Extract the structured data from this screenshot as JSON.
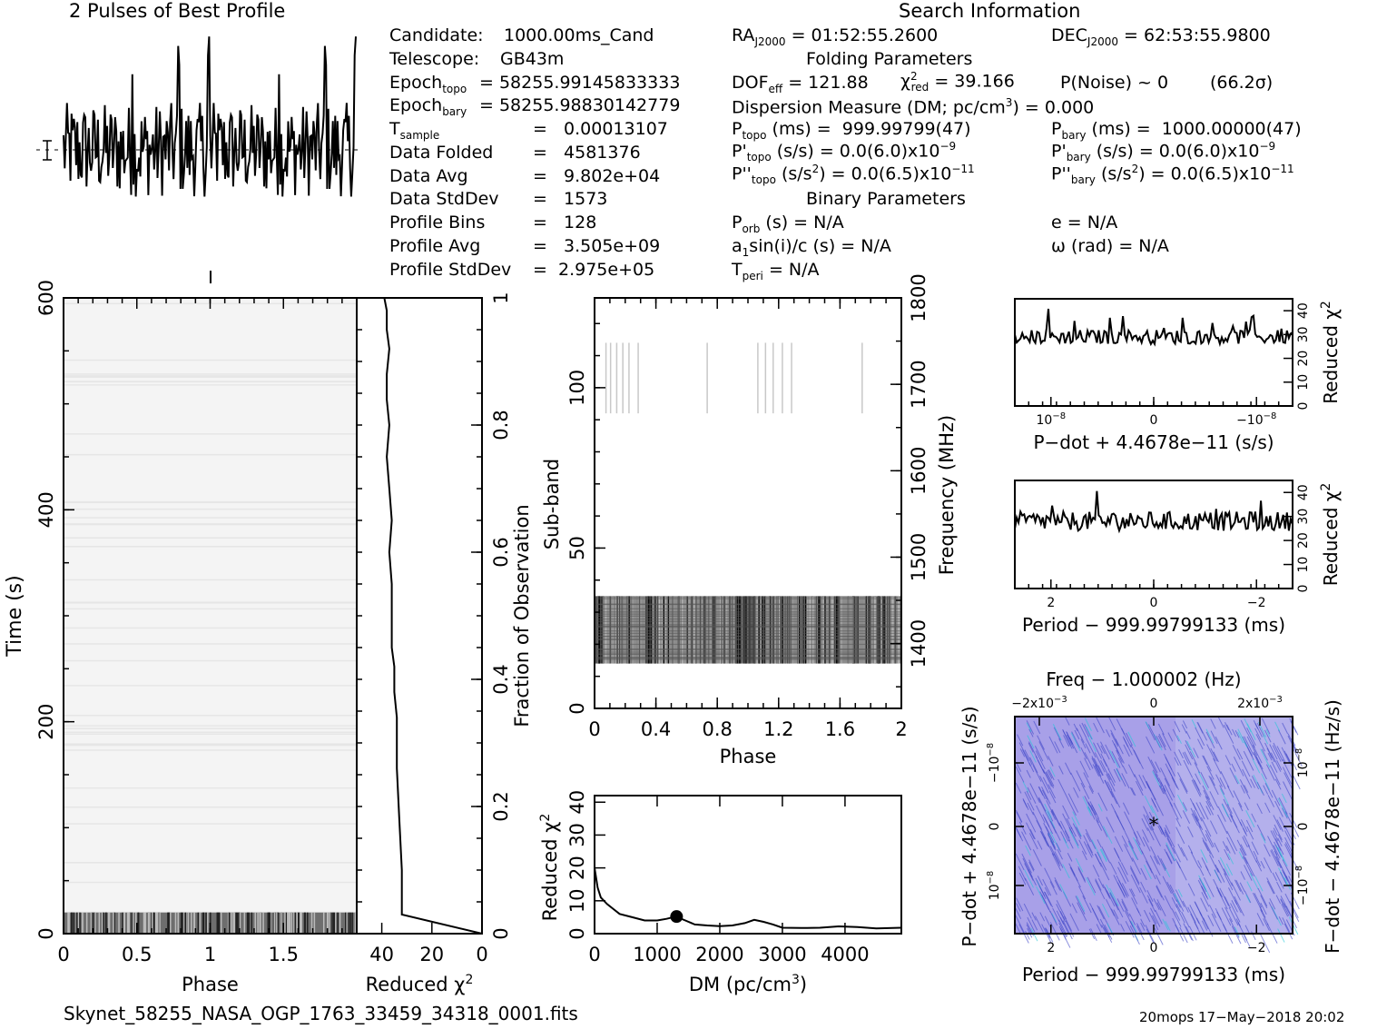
{
  "header": {
    "profile_title": "2 Pulses of Best Profile",
    "search_title": "Search Information",
    "folding_title": "Folding Parameters",
    "binary_title": "Binary Parameters"
  },
  "candidate_info": [
    {
      "label": "Candidate:",
      "value": "1000.00ms_Cand"
    },
    {
      "label": "Telescope:",
      "value": "GB43m"
    },
    {
      "label": "Epoch",
      "sub": "topo",
      "value": "= 58255.99145833333"
    },
    {
      "label": "Epoch",
      "sub": "bary",
      "value": "= 58255.98830142779"
    },
    {
      "label": "T",
      "sub": "sample",
      "value": "=   0.00013107"
    },
    {
      "label": "Data Folded",
      "value": "=   4581376"
    },
    {
      "label": "Data Avg",
      "value": "=   9.802e+04"
    },
    {
      "label": "Data StdDev",
      "value": "=   1573"
    },
    {
      "label": "Profile Bins",
      "value": "=   128"
    },
    {
      "label": "Profile Avg",
      "value": "=   3.505e+09"
    },
    {
      "label": "Profile StdDev",
      "value": "=  2.975e+05"
    }
  ],
  "search_info": {
    "ra_label": "RA",
    "ra_sub": "J2000",
    "ra_value": "= 01:52:55.2600",
    "dec_label": "DEC",
    "dec_sub": "J2000",
    "dec_value": "= 62:53:55.9800"
  },
  "folding": {
    "dof_label": "DOF",
    "dof_sub": "eff",
    "dof_value": "= 121.88",
    "chi_label": "χ",
    "chi_sup": "2",
    "chi_sub": "red",
    "chi_value": "= 39.166",
    "pnoise": "P(Noise) ~ 0",
    "sigma": "(66.2σ)",
    "dm_text": "Dispersion Measure (DM; pc/cm",
    "dm_sup": "3",
    "dm_value": ") = 0.000",
    "ptopo_label": "P",
    "ptopo_sub": "topo",
    "ptopo_value": "(ms) =  999.99799(47)",
    "pbary_label": "P",
    "pbary_sub": "bary",
    "pbary_value": "(ms) =  1000.00000(47)",
    "pdtopo_label": "P'",
    "pdtopo_sub": "topo",
    "pdtopo_value": "(s/s) = 0.0(6.0)x10",
    "pdtopo_exp": "−9",
    "pdbary_label": "P'",
    "pdbary_sub": "bary",
    "pdbary_value": "(s/s) = 0.0(6.0)x10",
    "pdbary_exp": "−9",
    "pddtopo_label": "P''",
    "pddtopo_sub": "topo",
    "pddtopo_value": "(s/s",
    "pddtopo_unit_sup": "2",
    "pddtopo_value2": ") = 0.0(6.5)x10",
    "pddtopo_exp": "−11",
    "pddbary_label": "P''",
    "pddbary_sub": "bary",
    "pddbary_value": "(s/s",
    "pddbary_unit_sup": "2",
    "pddbary_value2": ") = 0.0(6.5)x10",
    "pddbary_exp": "−11"
  },
  "binary": {
    "porb_label": "P",
    "porb_sub": "orb",
    "porb_value": "(s) = N/A",
    "e_text": "e = N/A",
    "a1_label": "a",
    "a1_sub": "1",
    "a1_value": "sin(i)/c (s) = N/A",
    "omega_text": "ω (rad) = N/A",
    "tperi_label": "T",
    "tperi_sub": "peri",
    "tperi_value": "= N/A"
  },
  "footer": {
    "filename": "Skynet_58255_NASA_OGP_1763_33459_34318_0001.fits",
    "stamp": "20mops 17−May−2018 20:02"
  },
  "colors": {
    "ink": "#000000",
    "ppdot_bg": "#a8a0e8",
    "ppdot_dark": "#3e46c8",
    "ppdot_cyan": "#22c8d8"
  },
  "chart_data": [
    {
      "id": "profile",
      "type": "line",
      "title": "2 Pulses of Best Profile",
      "xlabel": "",
      "ylabel": "",
      "xlim": [
        0,
        2
      ],
      "note": "noisy pulse profile repeated twice, no axis labels printed"
    },
    {
      "id": "time-phase",
      "type": "heatmap",
      "xlabel": "Phase",
      "ylabel": "Time (s)",
      "xlim": [
        0,
        2
      ],
      "ylim": [
        0,
        600
      ],
      "x_ticks": [
        "0",
        "0.5",
        "1",
        "1.5"
      ],
      "y_ticks": [
        "0",
        "200",
        "400",
        "600"
      ],
      "note": "mostly blank; dark band of signal near t = 0–20 s"
    },
    {
      "id": "time-chi2",
      "type": "line",
      "xlabel": "Reduced χ2",
      "ylabel": "Fraction of Observation",
      "xlim": [
        50,
        0
      ],
      "ylim": [
        0,
        1
      ],
      "x_ticks": [
        "40",
        "20",
        "0"
      ],
      "y_ticks": [
        "0",
        "0.2",
        "0.4",
        "0.6",
        "0.8",
        "1"
      ],
      "x": [
        0,
        32,
        32,
        33,
        34,
        34,
        35,
        35,
        35,
        36,
        36,
        36,
        37,
        36,
        37,
        38,
        37,
        38,
        38,
        37,
        38,
        38,
        39
      ],
      "y": [
        0,
        0.03,
        0.1,
        0.18,
        0.26,
        0.34,
        0.38,
        0.4,
        0.42,
        0.45,
        0.5,
        0.55,
        0.6,
        0.65,
        0.7,
        0.75,
        0.8,
        0.84,
        0.88,
        0.92,
        0.95,
        0.98,
        1.0
      ]
    },
    {
      "id": "subband-phase",
      "type": "heatmap",
      "xlabel": "Phase",
      "ylabel": "Sub-band",
      "y2label": "Frequency (MHz)",
      "xlim": [
        0,
        2
      ],
      "ylim": [
        0,
        128
      ],
      "y2lim": [
        1325,
        1800
      ],
      "x_ticks": [
        "0",
        "0.4",
        "0.8",
        "1.2",
        "1.6",
        "2"
      ],
      "y_ticks": [
        "0",
        "50",
        "100"
      ],
      "y2_ticks": [
        "1400",
        "1500",
        "1600",
        "1700",
        "1800"
      ],
      "band_subbands": [
        14,
        35
      ],
      "faint_band_subbands": [
        92,
        114
      ],
      "faint_line_phases": [
        0.07,
        0.1,
        0.14,
        0.18,
        0.22,
        0.28,
        0.73,
        1.06,
        1.11,
        1.16,
        1.22,
        1.28,
        1.74
      ]
    },
    {
      "id": "dm-chi2",
      "type": "line",
      "xlabel": "DM (pc/cm3)",
      "ylabel": "Reduced χ2",
      "xlim": [
        0,
        4900
      ],
      "ylim": [
        0,
        42
      ],
      "x_ticks": [
        "0",
        "1000",
        "2000",
        "3000",
        "4000"
      ],
      "y_ticks": [
        "0",
        "10",
        "20",
        "30",
        "40"
      ],
      "x": [
        0,
        50,
        100,
        200,
        300,
        400,
        600,
        800,
        1000,
        1150,
        1300,
        1450,
        1600,
        1800,
        2000,
        2200,
        2400,
        2550,
        2700,
        2850,
        3000,
        3300,
        3600,
        3900,
        4200,
        4500,
        4900
      ],
      "y": [
        20,
        14,
        11,
        9,
        7.5,
        6,
        5,
        4,
        4,
        4.5,
        5.2,
        4,
        2.8,
        2.5,
        2.3,
        2.5,
        3.2,
        4.2,
        3.6,
        2.8,
        1.8,
        1.7,
        1.8,
        2.2,
        2.0,
        1.6,
        1.8
      ],
      "best_dm": 1310,
      "best_chi2": 5.2
    },
    {
      "id": "pdot-chi2",
      "type": "line",
      "xlabel": "P−dot + 4.4678e−11 (s/s)",
      "ylabel": "Reduced χ2",
      "ylim": [
        0,
        45
      ],
      "x_ticks": [
        "10",
        "0",
        "−10"
      ],
      "x_tick_exp": "−8",
      "y_ticks": [
        "0",
        "10",
        "20",
        "30",
        "40"
      ],
      "level": 29,
      "noise": 3
    },
    {
      "id": "period-chi2",
      "type": "line",
      "xlabel": "Period − 999.99799133 (ms)",
      "ylabel": "Reduced χ2",
      "ylim": [
        0,
        45
      ],
      "x_ticks": [
        "2",
        "0",
        "−2"
      ],
      "y_ticks": [
        "0",
        "10",
        "20",
        "30",
        "40"
      ],
      "level": 28,
      "noise": 4
    },
    {
      "id": "p-pdot",
      "type": "heatmap",
      "xlabel": "Period − 999.99799133 (ms)",
      "ylabel": "P−dot + 4.4678e−11 (s/s)",
      "x2label": "Freq − 1.000002 (Hz)",
      "y2label": "F−dot − 4.4678e−11 (Hz/s)",
      "x_ticks": [
        "2",
        "0",
        "−2"
      ],
      "x2_ticks": [
        "−2x10",
        "0",
        "2x10"
      ],
      "x2_tick_exp": "−3",
      "y_ticks": [
        "−10",
        "0",
        "10"
      ],
      "y_tick_exp": "−8",
      "y2_ticks": [
        "10",
        "0",
        "−10"
      ],
      "y2_tick_exp": "−8"
    }
  ]
}
